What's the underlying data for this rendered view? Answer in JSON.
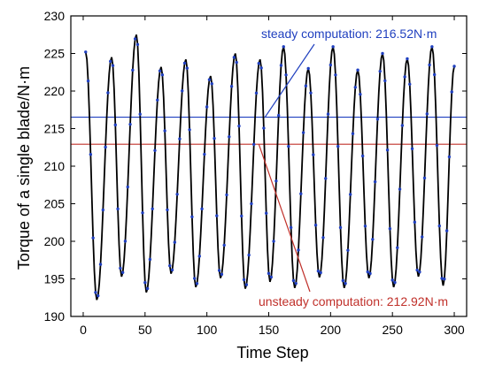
{
  "chart_data": {
    "type": "line",
    "title": "",
    "xlabel": "Time Step",
    "ylabel": "Torque of a single blade/N·m",
    "xlim": [
      -10,
      310
    ],
    "ylim": [
      190,
      230
    ],
    "xticks": [
      0,
      50,
      100,
      150,
      200,
      250,
      300
    ],
    "yticks": [
      190,
      195,
      200,
      205,
      210,
      215,
      220,
      225,
      230
    ],
    "grid": false,
    "legend": "none",
    "series": [
      {
        "color": "#000000",
        "marker_color": "#1f3fbf",
        "peaks": [
          {
            "x": 2,
            "y": 225.2
          },
          {
            "x": 23,
            "y": 224.5
          },
          {
            "x": 43,
            "y": 227.5
          },
          {
            "x": 63,
            "y": 223.2
          },
          {
            "x": 83,
            "y": 224.2
          },
          {
            "x": 103,
            "y": 222.0
          },
          {
            "x": 123,
            "y": 225.0
          },
          {
            "x": 143,
            "y": 224.2
          },
          {
            "x": 162,
            "y": 225.9
          },
          {
            "x": 182,
            "y": 223.0
          },
          {
            "x": 202,
            "y": 225.9
          },
          {
            "x": 222,
            "y": 222.8
          },
          {
            "x": 242,
            "y": 225.0
          },
          {
            "x": 262,
            "y": 224.3
          },
          {
            "x": 282,
            "y": 225.9
          },
          {
            "x": 300,
            "y": 223.3
          }
        ],
        "troughs": [
          {
            "x": 11,
            "y": 192.2
          },
          {
            "x": 31,
            "y": 195.3
          },
          {
            "x": 51,
            "y": 193.2
          },
          {
            "x": 71,
            "y": 195.7
          },
          {
            "x": 91,
            "y": 193.9
          },
          {
            "x": 111,
            "y": 195.1
          },
          {
            "x": 131,
            "y": 193.7
          },
          {
            "x": 151,
            "y": 194.6
          },
          {
            "x": 171,
            "y": 193.8
          },
          {
            "x": 191,
            "y": 195.2
          },
          {
            "x": 211,
            "y": 193.8
          },
          {
            "x": 231,
            "y": 195.1
          },
          {
            "x": 251,
            "y": 193.9
          },
          {
            "x": 271,
            "y": 195.3
          },
          {
            "x": 291,
            "y": 194.1
          }
        ]
      }
    ],
    "reference_lines": [
      {
        "y": 216.52,
        "color": "#1f3fbf",
        "label": "steady computation: 216.52N·m"
      },
      {
        "y": 212.92,
        "color": "#c0302a",
        "label": "unsteady computation: 212.92N·m"
      }
    ]
  }
}
